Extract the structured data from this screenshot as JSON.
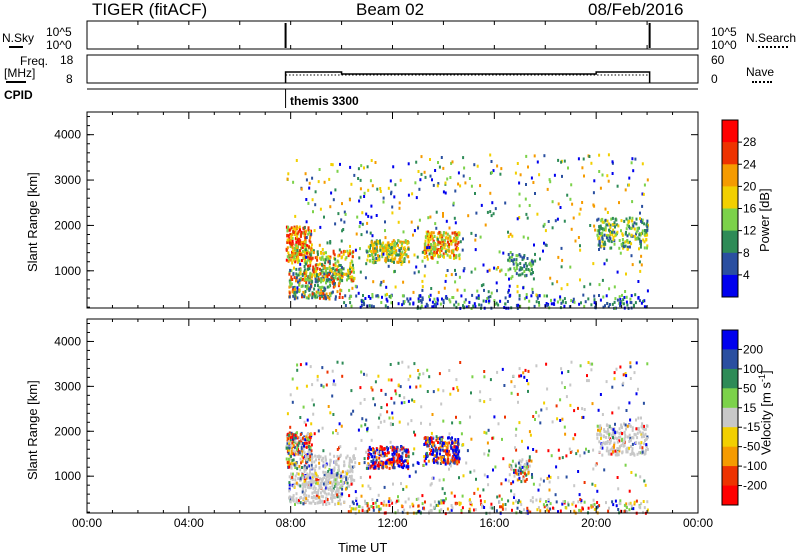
{
  "header": {
    "radar": "TIGER (fitACF)",
    "beam": "Beam 02",
    "date": "08/Feb/2016"
  },
  "top_panels": {
    "nsky_label": "N.Sky",
    "nsearch_label": "N.Search",
    "freq_label_1": "Freq.",
    "freq_label_2": "[MHz]",
    "nave_label": "Nave",
    "cpid_label": "CPID",
    "cpid_name": "themis 3300",
    "noise_ticks_left": [
      "10^5",
      "10^0"
    ],
    "noise_ticks_right": [
      "10^5",
      "10^0"
    ],
    "freq_ticks_left": [
      "18",
      "8"
    ],
    "nave_ticks_right": [
      "60",
      "0"
    ]
  },
  "chart_data": [
    {
      "type": "heatmap",
      "name": "power",
      "ylabel": "Slant Range [km]",
      "xlabel": "",
      "colorbar_label": "Power [dB]",
      "ylim": [
        180,
        4500
      ],
      "xlim": [
        0,
        24
      ],
      "yticks": [
        1000,
        2000,
        3000,
        4000
      ],
      "colorbar_ticks": [
        4,
        8,
        12,
        16,
        20,
        24,
        28
      ],
      "colors": [
        "#0000ee",
        "#2a4fa0",
        "#2e8b57",
        "#7cd24a",
        "#f2d000",
        "#f59b00",
        "#ee3300",
        "#ff0000"
      ],
      "data_start_ut": 7.8,
      "data_end_ut": 22.1
    },
    {
      "type": "heatmap",
      "name": "velocity",
      "ylabel": "Slant Range [km]",
      "xlabel": "Time UT",
      "colorbar_label": "Velocity [m s",
      "colorbar_label_sup": "-1",
      "colorbar_label_end": "]",
      "ylim": [
        180,
        4500
      ],
      "xlim": [
        0,
        24
      ],
      "yticks": [
        1000,
        2000,
        3000,
        4000
      ],
      "xtick_labels": [
        "00:00",
        "04:00",
        "08:00",
        "12:00",
        "16:00",
        "20:00",
        "00:00"
      ],
      "colorbar_ticks": [
        200,
        100,
        50,
        15,
        -15,
        -50,
        -100,
        -200
      ],
      "colors": [
        "#0000ee",
        "#2a4fa0",
        "#2e8b57",
        "#7cd24a",
        "#c8c8c8",
        "#f2d000",
        "#f59b00",
        "#ee3300",
        "#ff0000"
      ],
      "data_start_ut": 7.8,
      "data_end_ut": 22.1
    }
  ]
}
